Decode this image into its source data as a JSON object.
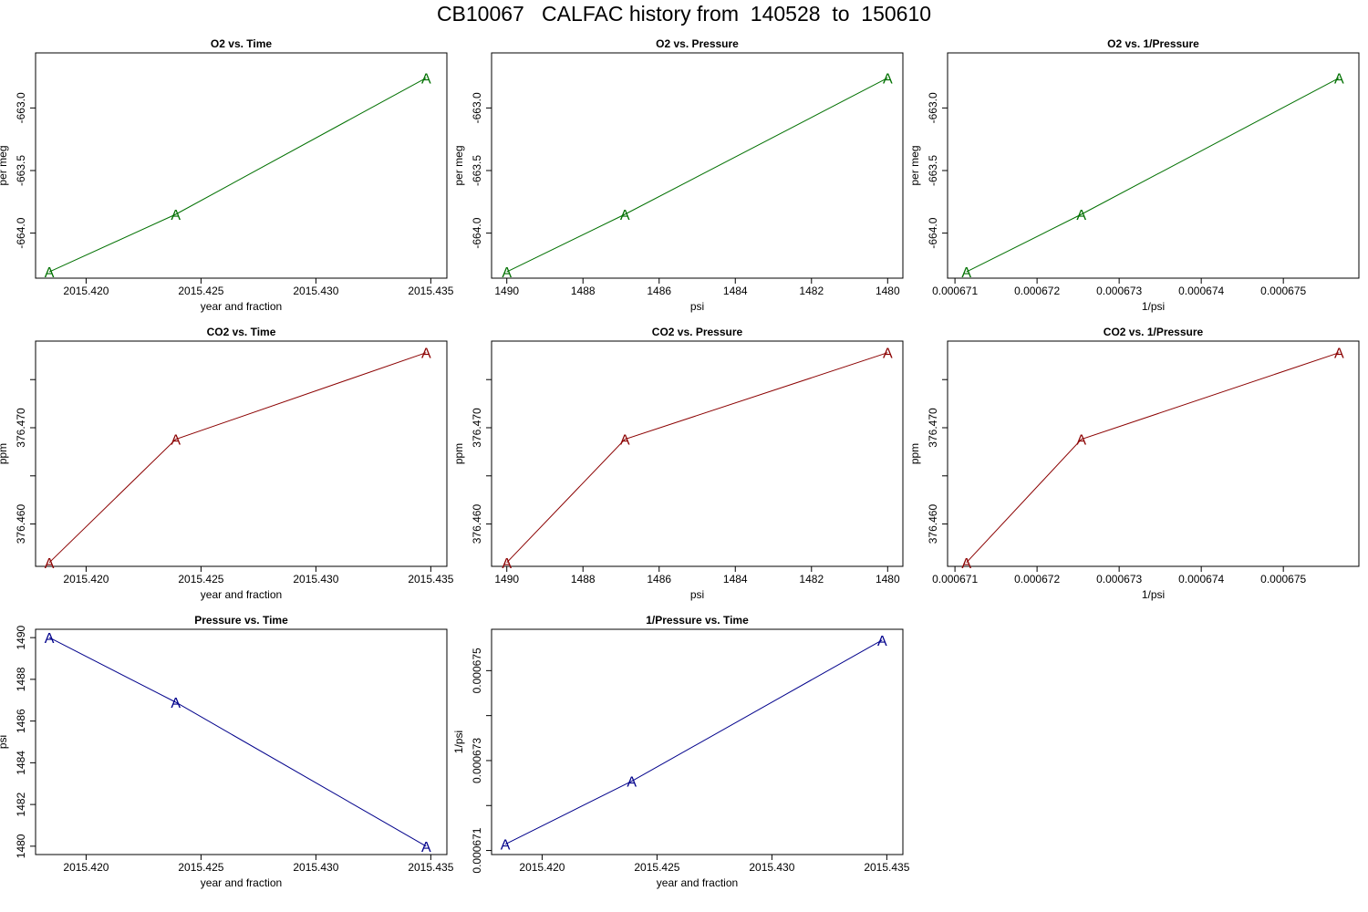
{
  "figure_title": "CB10067   CALFAC history from  140528  to  150610",
  "colors": {
    "o2": "#007000",
    "co2": "#8b0000",
    "pressure": "#00008b"
  },
  "marker": "A",
  "chart_data": [
    {
      "type": "line",
      "title": "O2 vs. Time",
      "xlabel": "year and fraction",
      "ylabel": "per meg",
      "xticks": [
        2015.42,
        2015.425,
        2015.43,
        2015.435
      ],
      "xtick_labels": [
        "2015.420",
        "2015.425",
        "2015.430",
        "2015.435"
      ],
      "yticks": [
        -664.0,
        -663.5,
        -663.0
      ],
      "ytick_labels": [
        "-664.0",
        "-663.5",
        "-663.0"
      ],
      "xlim": [
        2015.4178,
        2015.4357
      ],
      "ylim": [
        -664.36,
        -662.56
      ],
      "series": [
        {
          "x": [
            2015.4184,
            2015.4239,
            2015.4348
          ],
          "y": [
            -664.31,
            -663.85,
            -662.76
          ]
        }
      ],
      "color": "o2"
    },
    {
      "type": "line",
      "title": "O2 vs. Pressure",
      "xlabel": "psi",
      "ylabel": "per meg",
      "xticks": [
        1490,
        1488,
        1486,
        1484,
        1482,
        1480
      ],
      "xtick_labels": [
        "1490",
        "1488",
        "1486",
        "1484",
        "1482",
        "1480"
      ],
      "yticks": [
        -664.0,
        -663.5,
        -663.0
      ],
      "ytick_labels": [
        "-664.0",
        "-663.5",
        "-663.0"
      ],
      "xlim": [
        1490.4,
        1479.6
      ],
      "ylim": [
        -664.36,
        -662.56
      ],
      "series": [
        {
          "x": [
            1490.0,
            1486.9,
            1480.0
          ],
          "y": [
            -664.31,
            -663.85,
            -662.76
          ]
        }
      ],
      "color": "o2"
    },
    {
      "type": "line",
      "title": "O2 vs. 1/Pressure",
      "xlabel": "1/psi",
      "ylabel": "per meg",
      "xticks": [
        0.000671,
        0.000672,
        0.000673,
        0.000674,
        0.000675
      ],
      "xtick_labels": [
        "0.000671",
        "0.000672",
        "0.000673",
        "0.000674",
        "0.000675"
      ],
      "yticks": [
        -664.0,
        -663.5,
        -663.0
      ],
      "ytick_labels": [
        "-664.0",
        "-663.5",
        "-663.0"
      ],
      "xlim": [
        0.00067091,
        0.00067592
      ],
      "ylim": [
        -664.36,
        -662.56
      ],
      "series": [
        {
          "x": [
            0.00067114,
            0.00067254,
            0.00067568
          ],
          "y": [
            -664.31,
            -663.85,
            -662.76
          ]
        }
      ],
      "color": "o2"
    },
    {
      "type": "line",
      "title": "CO2 vs. Time",
      "xlabel": "year and fraction",
      "ylabel": "ppm",
      "xticks": [
        2015.42,
        2015.425,
        2015.43,
        2015.435
      ],
      "xtick_labels": [
        "2015.420",
        "2015.425",
        "2015.430",
        "2015.435"
      ],
      "yticks": [
        376.46,
        376.465,
        376.47,
        376.475
      ],
      "ytick_labels": [
        "376.460",
        "",
        "376.470",
        ""
      ],
      "xlim": [
        2015.4178,
        2015.4357
      ],
      "ylim": [
        376.4556,
        376.479
      ],
      "series": [
        {
          "x": [
            2015.4184,
            2015.4239,
            2015.4348
          ],
          "y": [
            376.456,
            376.4688,
            376.4778
          ]
        }
      ],
      "color": "co2"
    },
    {
      "type": "line",
      "title": "CO2 vs. Pressure",
      "xlabel": "psi",
      "ylabel": "ppm",
      "xticks": [
        1490,
        1488,
        1486,
        1484,
        1482,
        1480
      ],
      "xtick_labels": [
        "1490",
        "1488",
        "1486",
        "1484",
        "1482",
        "1480"
      ],
      "yticks": [
        376.46,
        376.465,
        376.47,
        376.475
      ],
      "ytick_labels": [
        "376.460",
        "",
        "376.470",
        ""
      ],
      "xlim": [
        1490.4,
        1479.6
      ],
      "ylim": [
        376.4556,
        376.479
      ],
      "series": [
        {
          "x": [
            1490.0,
            1486.9,
            1480.0
          ],
          "y": [
            376.456,
            376.4688,
            376.4778
          ]
        }
      ],
      "color": "co2"
    },
    {
      "type": "line",
      "title": "CO2 vs. 1/Pressure",
      "xlabel": "1/psi",
      "ylabel": "ppm",
      "xticks": [
        0.000671,
        0.000672,
        0.000673,
        0.000674,
        0.000675
      ],
      "xtick_labels": [
        "0.000671",
        "0.000672",
        "0.000673",
        "0.000674",
        "0.000675"
      ],
      "yticks": [
        376.46,
        376.465,
        376.47,
        376.475
      ],
      "ytick_labels": [
        "376.460",
        "",
        "376.470",
        ""
      ],
      "xlim": [
        0.00067091,
        0.00067592
      ],
      "ylim": [
        376.4556,
        376.479
      ],
      "series": [
        {
          "x": [
            0.00067114,
            0.00067254,
            0.00067568
          ],
          "y": [
            376.456,
            376.4688,
            376.4778
          ]
        }
      ],
      "color": "co2"
    },
    {
      "type": "line",
      "title": "Pressure vs. Time",
      "xlabel": "year and fraction",
      "ylabel": "psi",
      "xticks": [
        2015.42,
        2015.425,
        2015.43,
        2015.435
      ],
      "xtick_labels": [
        "2015.420",
        "2015.425",
        "2015.430",
        "2015.435"
      ],
      "yticks": [
        1480,
        1482,
        1484,
        1486,
        1488,
        1490
      ],
      "ytick_labels": [
        "1480",
        "1482",
        "1484",
        "1486",
        "1488",
        "1490"
      ],
      "xlim": [
        2015.4178,
        2015.4357
      ],
      "ylim": [
        1479.6,
        1490.4
      ],
      "series": [
        {
          "x": [
            2015.4184,
            2015.4239,
            2015.4348
          ],
          "y": [
            1490.0,
            1486.9,
            1480.0
          ]
        }
      ],
      "color": "pressure"
    },
    {
      "type": "line",
      "title": "1/Pressure vs. Time",
      "xlabel": "year and fraction",
      "ylabel": "1/psi",
      "xticks": [
        2015.42,
        2015.425,
        2015.43,
        2015.435
      ],
      "xtick_labels": [
        "2015.420",
        "2015.425",
        "2015.430",
        "2015.435"
      ],
      "yticks": [
        0.000671,
        0.000672,
        0.000673,
        0.000674,
        0.000675
      ],
      "ytick_labels": [
        "0.000671",
        "",
        "0.000673",
        "",
        "0.000675"
      ],
      "xlim": [
        2015.4178,
        2015.4357
      ],
      "ylim": [
        0.00067091,
        0.00067592
      ],
      "series": [
        {
          "x": [
            2015.4184,
            2015.4239,
            2015.4348
          ],
          "y": [
            0.00067114,
            0.00067254,
            0.00067568
          ]
        }
      ],
      "color": "pressure"
    }
  ]
}
